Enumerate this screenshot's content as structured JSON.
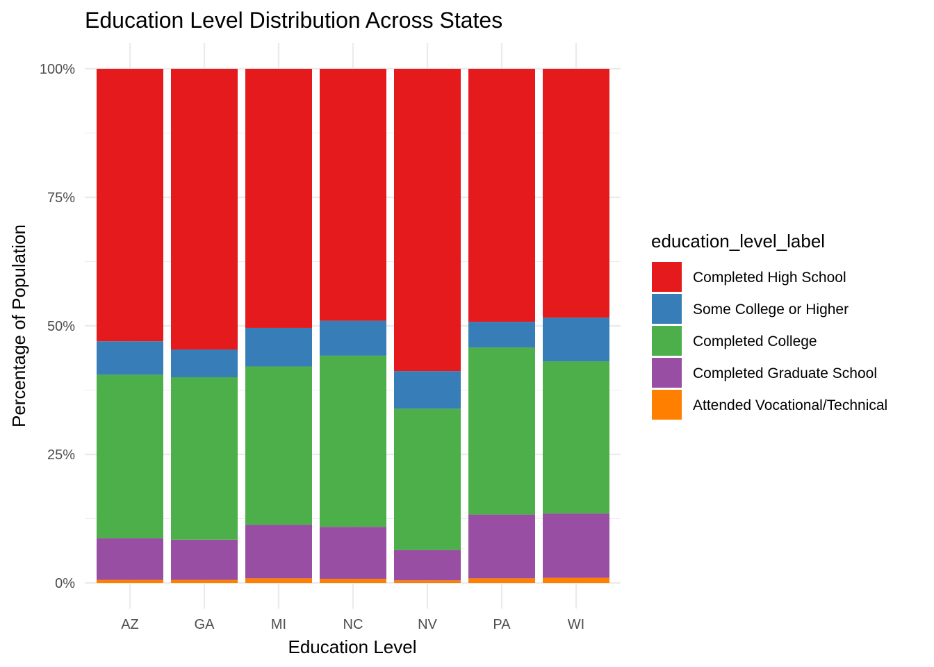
{
  "chart_data": {
    "type": "bar",
    "stacked": true,
    "title": "Education Level Distribution Across States",
    "xlabel": "Education Level",
    "ylabel": "Percentage of Population",
    "ylim": [
      0,
      1
    ],
    "y_ticks": [
      0,
      0.25,
      0.5,
      0.75,
      1.0
    ],
    "y_tick_labels": [
      "0%",
      "25%",
      "50%",
      "75%",
      "100%"
    ],
    "grid": true,
    "categories": [
      "AZ",
      "GA",
      "MI",
      "NC",
      "NV",
      "PA",
      "WI"
    ],
    "legend": {
      "title": "education_level_label",
      "position": "right"
    },
    "series": [
      {
        "name": "Completed High School",
        "color": "#E41A1C",
        "values": [
          0.53,
          0.546,
          0.504,
          0.49,
          0.588,
          0.492,
          0.484
        ]
      },
      {
        "name": "Some College or Higher",
        "color": "#377EB8",
        "values": [
          0.065,
          0.054,
          0.075,
          0.068,
          0.073,
          0.05,
          0.085
        ]
      },
      {
        "name": "Completed College",
        "color": "#4DAF4A",
        "values": [
          0.318,
          0.316,
          0.308,
          0.333,
          0.275,
          0.325,
          0.296
        ]
      },
      {
        "name": "Completed Graduate School",
        "color": "#984EA3",
        "values": [
          0.081,
          0.078,
          0.104,
          0.101,
          0.059,
          0.124,
          0.125
        ]
      },
      {
        "name": "Attended Vocational/Technical",
        "color": "#FF7F00",
        "values": [
          0.006,
          0.006,
          0.009,
          0.008,
          0.005,
          0.009,
          0.01
        ]
      }
    ]
  }
}
